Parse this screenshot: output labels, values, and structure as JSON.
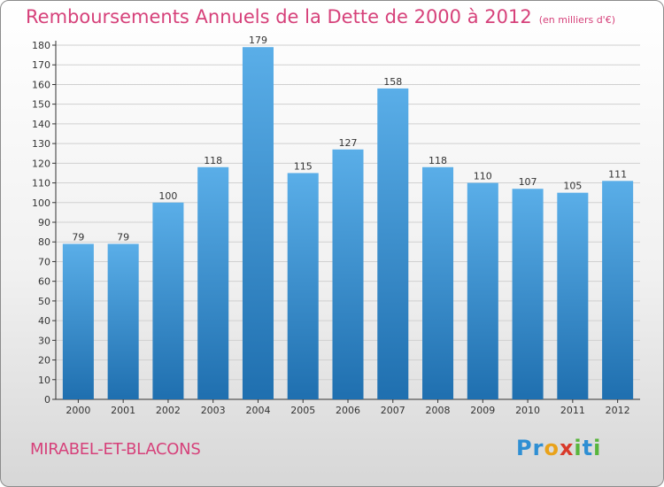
{
  "header": {
    "title": "Remboursements Annuels de la Dette de 2000 à 2012",
    "unit": "(en milliers d'€)"
  },
  "footer": {
    "commune": "MIRABEL-ET-BLACONS",
    "logo_letters": [
      {
        "char": "P",
        "color": "#2f8fd3"
      },
      {
        "char": "r",
        "color": "#2f8fd3"
      },
      {
        "char": "o",
        "color": "#e9a21a"
      },
      {
        "char": "x",
        "color": "#d93a2b"
      },
      {
        "char": "i",
        "color": "#58b53c"
      },
      {
        "char": "t",
        "color": "#2f8fd3"
      },
      {
        "char": "i",
        "color": "#58b53c"
      }
    ]
  },
  "colors": {
    "title": "#d6417a",
    "bar_top": "#5aaee8",
    "bar_bottom": "#1f6faf",
    "axis": "#333333",
    "grid": "#d0d0d0"
  },
  "chart_data": {
    "type": "bar",
    "categories": [
      "2000",
      "2001",
      "2002",
      "2003",
      "2004",
      "2005",
      "2006",
      "2007",
      "2008",
      "2009",
      "2010",
      "2011",
      "2012"
    ],
    "values": [
      79,
      79,
      100,
      118,
      179,
      115,
      127,
      158,
      118,
      110,
      107,
      105,
      111
    ],
    "ylim": [
      0,
      180
    ],
    "ytick_step": 10,
    "data_labels": true,
    "grid": "horizontal"
  }
}
